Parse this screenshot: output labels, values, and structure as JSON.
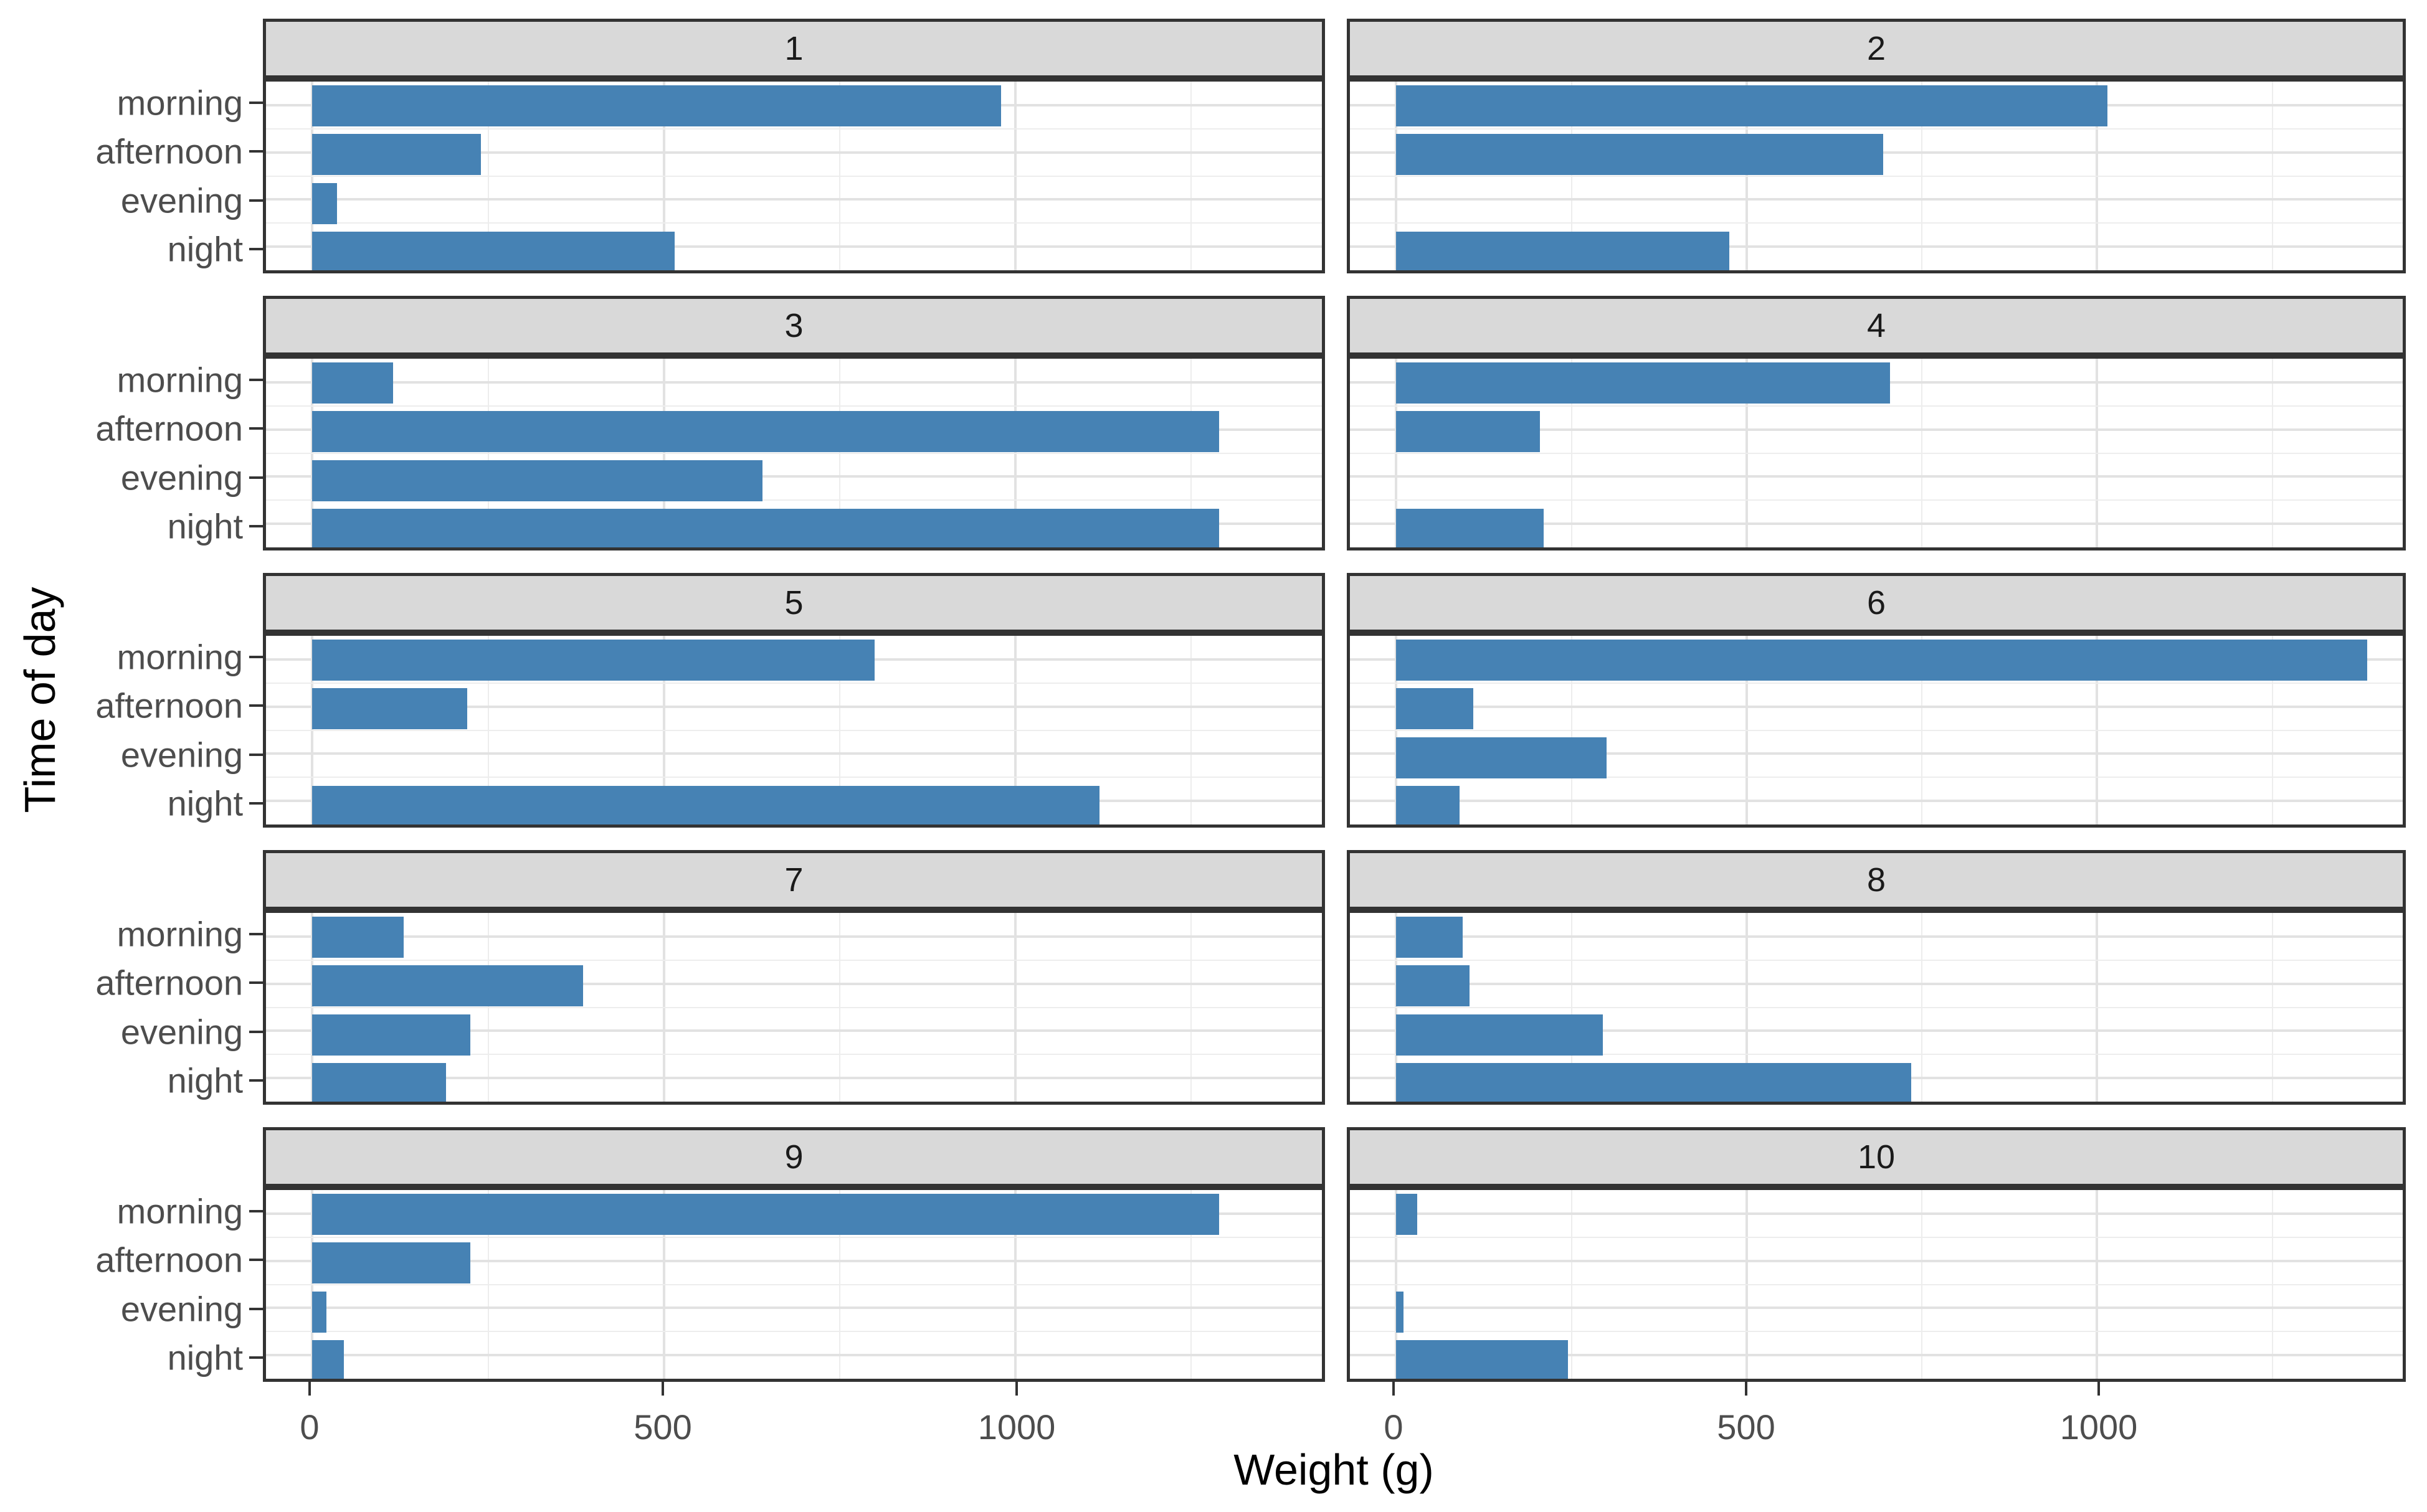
{
  "chart_data": {
    "type": "bar",
    "orientation": "horizontal",
    "title": "",
    "xlabel": "Weight (g)",
    "ylabel": "Time of day",
    "categories": [
      "morning",
      "afternoon",
      "evening",
      "night"
    ],
    "x_ticks": [
      0,
      500,
      1000
    ],
    "x_gridlines_major": [
      0,
      500,
      1000
    ],
    "x_gridlines_minor": [
      250,
      750,
      1250
    ],
    "xlim": [
      -66,
      1436
    ],
    "legend": "none",
    "grid": "on",
    "facet_layout": {
      "rows": 5,
      "cols": 2
    },
    "facets": [
      {
        "label": "1",
        "values": [
          980,
          240,
          35,
          515
        ]
      },
      {
        "label": "2",
        "values": [
          1015,
          695,
          0,
          475
        ]
      },
      {
        "label": "3",
        "values": [
          115,
          1290,
          640,
          1290
        ]
      },
      {
        "label": "4",
        "values": [
          705,
          205,
          0,
          210
        ]
      },
      {
        "label": "5",
        "values": [
          800,
          220,
          0,
          1120
        ]
      },
      {
        "label": "6",
        "values": [
          1385,
          110,
          300,
          90
        ]
      },
      {
        "label": "7",
        "values": [
          130,
          385,
          225,
          190
        ]
      },
      {
        "label": "8",
        "values": [
          95,
          105,
          295,
          735
        ]
      },
      {
        "label": "9",
        "values": [
          1290,
          225,
          20,
          45
        ]
      },
      {
        "label": "10",
        "values": [
          30,
          0,
          10,
          245
        ]
      }
    ],
    "colors": {
      "bar": "#4682B4",
      "strip_bg": "#D9D9D9",
      "panel_border": "#333333",
      "grid_major": "#E2E2E2",
      "grid_minor": "#EDEDED",
      "axis_text": "#4D4D4D",
      "strip_text": "#1A1A1A",
      "title_text": "#000000",
      "background": "#FFFFFF"
    }
  }
}
